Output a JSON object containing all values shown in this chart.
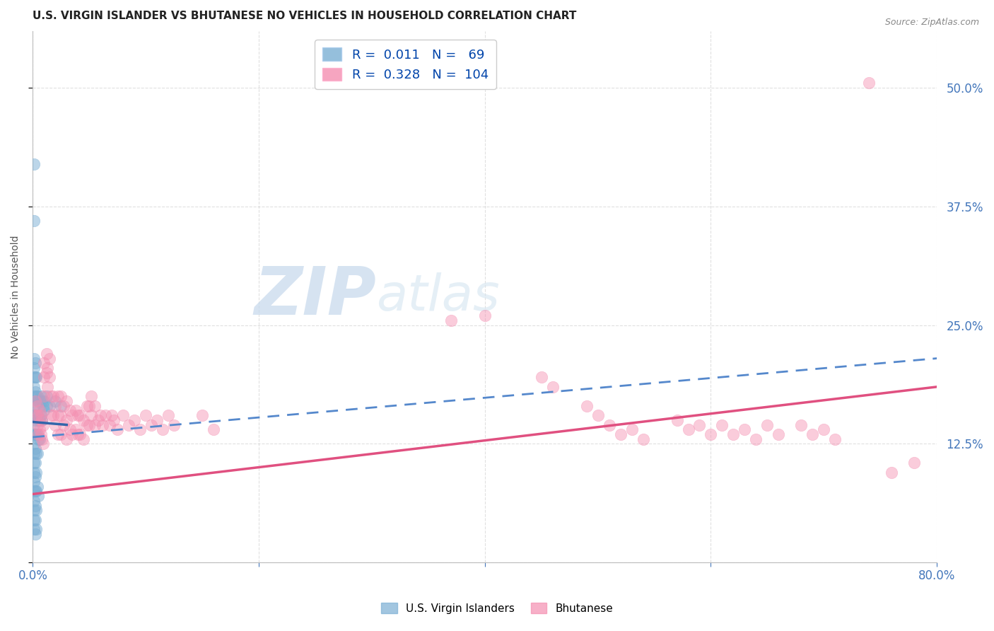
{
  "title": "U.S. VIRGIN ISLANDER VS BHUTANESE NO VEHICLES IN HOUSEHOLD CORRELATION CHART",
  "source": "Source: ZipAtlas.com",
  "ylabel_left": "No Vehicles in Household",
  "xlim": [
    0.0,
    0.8
  ],
  "ylim": [
    0.0,
    0.56
  ],
  "watermark_zip": "ZIP",
  "watermark_atlas": "atlas",
  "blue_color": "#7BAFD4",
  "pink_color": "#F48FB1",
  "blue_scatter": [
    [
      0.001,
      0.42
    ],
    [
      0.001,
      0.36
    ],
    [
      0.001,
      0.215
    ],
    [
      0.001,
      0.205
    ],
    [
      0.001,
      0.195
    ],
    [
      0.001,
      0.185
    ],
    [
      0.001,
      0.175
    ],
    [
      0.001,
      0.165
    ],
    [
      0.001,
      0.155
    ],
    [
      0.001,
      0.145
    ],
    [
      0.001,
      0.135
    ],
    [
      0.001,
      0.125
    ],
    [
      0.001,
      0.115
    ],
    [
      0.001,
      0.105
    ],
    [
      0.001,
      0.095
    ],
    [
      0.001,
      0.085
    ],
    [
      0.001,
      0.075
    ],
    [
      0.001,
      0.065
    ],
    [
      0.001,
      0.055
    ],
    [
      0.001,
      0.045
    ],
    [
      0.001,
      0.035
    ],
    [
      0.002,
      0.21
    ],
    [
      0.002,
      0.195
    ],
    [
      0.002,
      0.18
    ],
    [
      0.002,
      0.165
    ],
    [
      0.002,
      0.15
    ],
    [
      0.002,
      0.135
    ],
    [
      0.002,
      0.12
    ],
    [
      0.002,
      0.105
    ],
    [
      0.002,
      0.09
    ],
    [
      0.002,
      0.075
    ],
    [
      0.002,
      0.06
    ],
    [
      0.002,
      0.045
    ],
    [
      0.002,
      0.03
    ],
    [
      0.003,
      0.195
    ],
    [
      0.003,
      0.175
    ],
    [
      0.003,
      0.155
    ],
    [
      0.003,
      0.135
    ],
    [
      0.003,
      0.115
    ],
    [
      0.003,
      0.095
    ],
    [
      0.003,
      0.075
    ],
    [
      0.003,
      0.055
    ],
    [
      0.003,
      0.035
    ],
    [
      0.004,
      0.175
    ],
    [
      0.004,
      0.155
    ],
    [
      0.004,
      0.135
    ],
    [
      0.004,
      0.115
    ],
    [
      0.004,
      0.08
    ],
    [
      0.005,
      0.17
    ],
    [
      0.005,
      0.15
    ],
    [
      0.005,
      0.13
    ],
    [
      0.005,
      0.07
    ],
    [
      0.006,
      0.17
    ],
    [
      0.006,
      0.15
    ],
    [
      0.006,
      0.13
    ],
    [
      0.007,
      0.175
    ],
    [
      0.007,
      0.155
    ],
    [
      0.008,
      0.17
    ],
    [
      0.008,
      0.15
    ],
    [
      0.009,
      0.165
    ],
    [
      0.01,
      0.17
    ],
    [
      0.01,
      0.16
    ],
    [
      0.012,
      0.175
    ],
    [
      0.012,
      0.165
    ],
    [
      0.015,
      0.165
    ],
    [
      0.02,
      0.17
    ],
    [
      0.025,
      0.165
    ]
  ],
  "pink_scatter": [
    [
      0.002,
      0.17
    ],
    [
      0.003,
      0.155
    ],
    [
      0.004,
      0.165
    ],
    [
      0.004,
      0.145
    ],
    [
      0.005,
      0.155
    ],
    [
      0.005,
      0.135
    ],
    [
      0.006,
      0.16
    ],
    [
      0.006,
      0.14
    ],
    [
      0.007,
      0.155
    ],
    [
      0.007,
      0.135
    ],
    [
      0.008,
      0.15
    ],
    [
      0.008,
      0.13
    ],
    [
      0.009,
      0.145
    ],
    [
      0.009,
      0.125
    ],
    [
      0.01,
      0.21
    ],
    [
      0.01,
      0.195
    ],
    [
      0.01,
      0.175
    ],
    [
      0.012,
      0.22
    ],
    [
      0.012,
      0.2
    ],
    [
      0.013,
      0.205
    ],
    [
      0.013,
      0.185
    ],
    [
      0.015,
      0.215
    ],
    [
      0.015,
      0.195
    ],
    [
      0.016,
      0.175
    ],
    [
      0.016,
      0.155
    ],
    [
      0.018,
      0.175
    ],
    [
      0.018,
      0.155
    ],
    [
      0.02,
      0.165
    ],
    [
      0.02,
      0.145
    ],
    [
      0.022,
      0.175
    ],
    [
      0.022,
      0.155
    ],
    [
      0.022,
      0.135
    ],
    [
      0.025,
      0.175
    ],
    [
      0.025,
      0.155
    ],
    [
      0.025,
      0.135
    ],
    [
      0.027,
      0.165
    ],
    [
      0.027,
      0.145
    ],
    [
      0.03,
      0.17
    ],
    [
      0.03,
      0.15
    ],
    [
      0.03,
      0.13
    ],
    [
      0.033,
      0.16
    ],
    [
      0.033,
      0.14
    ],
    [
      0.035,
      0.155
    ],
    [
      0.035,
      0.135
    ],
    [
      0.038,
      0.16
    ],
    [
      0.038,
      0.14
    ],
    [
      0.04,
      0.155
    ],
    [
      0.04,
      0.135
    ],
    [
      0.042,
      0.155
    ],
    [
      0.042,
      0.135
    ],
    [
      0.045,
      0.15
    ],
    [
      0.045,
      0.13
    ],
    [
      0.048,
      0.165
    ],
    [
      0.048,
      0.145
    ],
    [
      0.05,
      0.165
    ],
    [
      0.05,
      0.145
    ],
    [
      0.052,
      0.175
    ],
    [
      0.052,
      0.155
    ],
    [
      0.055,
      0.165
    ],
    [
      0.055,
      0.145
    ],
    [
      0.058,
      0.15
    ],
    [
      0.06,
      0.155
    ],
    [
      0.062,
      0.145
    ],
    [
      0.064,
      0.155
    ],
    [
      0.068,
      0.145
    ],
    [
      0.07,
      0.155
    ],
    [
      0.072,
      0.15
    ],
    [
      0.075,
      0.14
    ],
    [
      0.08,
      0.155
    ],
    [
      0.085,
      0.145
    ],
    [
      0.09,
      0.15
    ],
    [
      0.095,
      0.14
    ],
    [
      0.1,
      0.155
    ],
    [
      0.105,
      0.145
    ],
    [
      0.11,
      0.15
    ],
    [
      0.115,
      0.14
    ],
    [
      0.12,
      0.155
    ],
    [
      0.125,
      0.145
    ],
    [
      0.15,
      0.155
    ],
    [
      0.16,
      0.14
    ],
    [
      0.37,
      0.255
    ],
    [
      0.4,
      0.26
    ],
    [
      0.45,
      0.195
    ],
    [
      0.46,
      0.185
    ],
    [
      0.49,
      0.165
    ],
    [
      0.5,
      0.155
    ],
    [
      0.51,
      0.145
    ],
    [
      0.52,
      0.135
    ],
    [
      0.53,
      0.14
    ],
    [
      0.54,
      0.13
    ],
    [
      0.57,
      0.15
    ],
    [
      0.58,
      0.14
    ],
    [
      0.59,
      0.145
    ],
    [
      0.6,
      0.135
    ],
    [
      0.61,
      0.145
    ],
    [
      0.62,
      0.135
    ],
    [
      0.63,
      0.14
    ],
    [
      0.64,
      0.13
    ],
    [
      0.65,
      0.145
    ],
    [
      0.66,
      0.135
    ],
    [
      0.68,
      0.145
    ],
    [
      0.69,
      0.135
    ],
    [
      0.7,
      0.14
    ],
    [
      0.71,
      0.13
    ],
    [
      0.74,
      0.505
    ],
    [
      0.76,
      0.095
    ],
    [
      0.78,
      0.105
    ]
  ],
  "blue_solid_line": {
    "x0": 0.0,
    "y0": 0.148,
    "x1": 0.03,
    "y1": 0.145
  },
  "blue_dashed_line": {
    "x0": 0.0,
    "y0": 0.132,
    "x1": 0.8,
    "y1": 0.215
  },
  "pink_solid_line": {
    "x0": 0.0,
    "y0": 0.072,
    "x1": 0.8,
    "y1": 0.185
  },
  "grid_color": "#CCCCCC",
  "background_color": "#FFFFFF"
}
